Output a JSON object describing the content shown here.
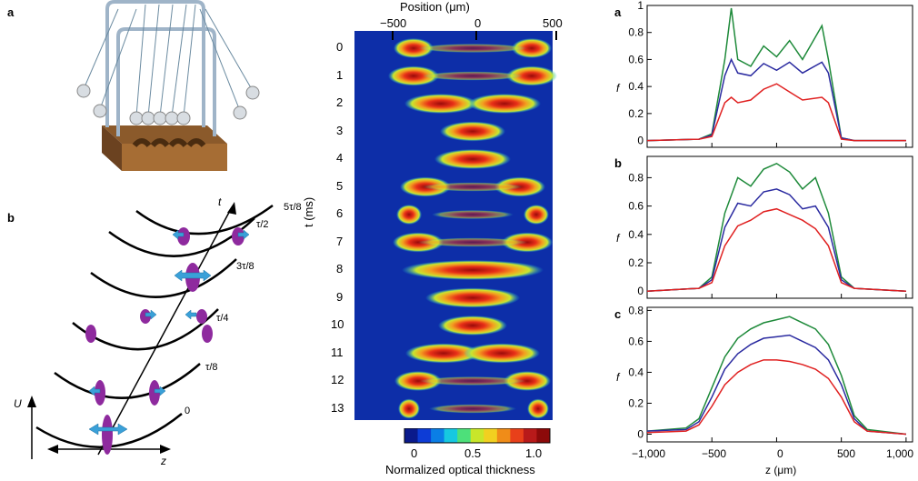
{
  "left": {
    "panel_a_letter": "a",
    "panel_b_letter": "b",
    "u_label": "U",
    "z_label": "z",
    "t_label": "t",
    "time_labels": [
      "0",
      "τ/8",
      "τ/4",
      "3τ/8",
      "τ/2",
      "5τ/8"
    ]
  },
  "middle": {
    "x_title": "Position (μm)",
    "x_ticks": [
      "−500",
      "0",
      "500"
    ],
    "y_title": "t (ms)",
    "rows": [
      "0",
      "1",
      "2",
      "3",
      "4",
      "5",
      "6",
      "7",
      "8",
      "9",
      "10",
      "11",
      "12",
      "13"
    ],
    "colorbar_ticks": [
      "0",
      "0.5",
      "1.0"
    ],
    "colorbar_label": "Normalized optical thickness",
    "colors": [
      "#0a1a8c",
      "#0d3cd6",
      "#0a7ee6",
      "#16c8e0",
      "#4de07a",
      "#c8e62a",
      "#f2d020",
      "#f08c18",
      "#e8401a",
      "#b81a1a",
      "#8c0a0a"
    ]
  },
  "right": {
    "panel_letters": [
      "a",
      "b",
      "c"
    ],
    "ylabel": "f",
    "xlabel": "z (μm)",
    "x_ticks": [
      "−1,000",
      "−500",
      "0",
      "500",
      "1,000"
    ]
  },
  "chart_data": [
    {
      "type": "line",
      "panel": "a",
      "x": [
        -1000,
        -600,
        -500,
        -400,
        -350,
        -300,
        -200,
        -100,
        0,
        100,
        200,
        350,
        400,
        500,
        600,
        1000
      ],
      "xlim": [
        -1000,
        1050
      ],
      "ylim": [
        -0.05,
        1.0
      ],
      "yticks": [
        0,
        0.2,
        0.4,
        0.6,
        0.8,
        1
      ],
      "series": [
        {
          "color": "#1e8a3a",
          "values": [
            0,
            0.01,
            0.05,
            0.6,
            0.98,
            0.6,
            0.55,
            0.7,
            0.62,
            0.74,
            0.6,
            0.85,
            0.6,
            0.02,
            0,
            0
          ]
        },
        {
          "color": "#2a2aa0",
          "values": [
            0,
            0.01,
            0.04,
            0.48,
            0.6,
            0.5,
            0.48,
            0.57,
            0.52,
            0.58,
            0.5,
            0.58,
            0.5,
            0.02,
            0,
            0
          ]
        },
        {
          "color": "#e02020",
          "values": [
            0,
            0.01,
            0.03,
            0.28,
            0.32,
            0.28,
            0.3,
            0.38,
            0.42,
            0.36,
            0.3,
            0.32,
            0.28,
            0.01,
            0,
            0
          ]
        }
      ]
    },
    {
      "type": "line",
      "panel": "b",
      "x": [
        -1000,
        -600,
        -500,
        -400,
        -300,
        -200,
        -100,
        0,
        100,
        200,
        300,
        400,
        500,
        600,
        1000
      ],
      "xlim": [
        -1000,
        1050
      ],
      "ylim": [
        -0.05,
        0.95
      ],
      "yticks": [
        0,
        0.2,
        0.4,
        0.6,
        0.8
      ],
      "series": [
        {
          "color": "#1e8a3a",
          "values": [
            0,
            0.02,
            0.1,
            0.55,
            0.8,
            0.74,
            0.86,
            0.9,
            0.84,
            0.72,
            0.8,
            0.55,
            0.1,
            0.02,
            0
          ]
        },
        {
          "color": "#2a2aa0",
          "values": [
            0,
            0.02,
            0.08,
            0.45,
            0.62,
            0.6,
            0.7,
            0.72,
            0.68,
            0.58,
            0.6,
            0.45,
            0.08,
            0.02,
            0
          ]
        },
        {
          "color": "#e02020",
          "values": [
            0,
            0.02,
            0.06,
            0.32,
            0.46,
            0.5,
            0.56,
            0.58,
            0.54,
            0.5,
            0.44,
            0.32,
            0.06,
            0.02,
            0
          ]
        }
      ]
    },
    {
      "type": "line",
      "panel": "c",
      "x": [
        -1000,
        -700,
        -600,
        -500,
        -400,
        -300,
        -200,
        -100,
        0,
        100,
        200,
        300,
        400,
        500,
        600,
        700,
        1000
      ],
      "xlim": [
        -1000,
        1050
      ],
      "ylim": [
        -0.05,
        0.82
      ],
      "yticks": [
        0,
        0.2,
        0.4,
        0.6,
        0.8
      ],
      "series": [
        {
          "color": "#1e8a3a",
          "values": [
            0.02,
            0.04,
            0.1,
            0.3,
            0.5,
            0.62,
            0.68,
            0.72,
            0.74,
            0.76,
            0.72,
            0.68,
            0.58,
            0.38,
            0.12,
            0.03,
            0
          ]
        },
        {
          "color": "#2a2aa0",
          "values": [
            0.02,
            0.03,
            0.08,
            0.24,
            0.42,
            0.52,
            0.58,
            0.62,
            0.63,
            0.64,
            0.6,
            0.56,
            0.48,
            0.32,
            0.1,
            0.02,
            0
          ]
        },
        {
          "color": "#e02020",
          "values": [
            0.01,
            0.02,
            0.06,
            0.18,
            0.32,
            0.4,
            0.45,
            0.48,
            0.48,
            0.47,
            0.45,
            0.42,
            0.36,
            0.24,
            0.08,
            0.02,
            0
          ]
        }
      ]
    }
  ]
}
